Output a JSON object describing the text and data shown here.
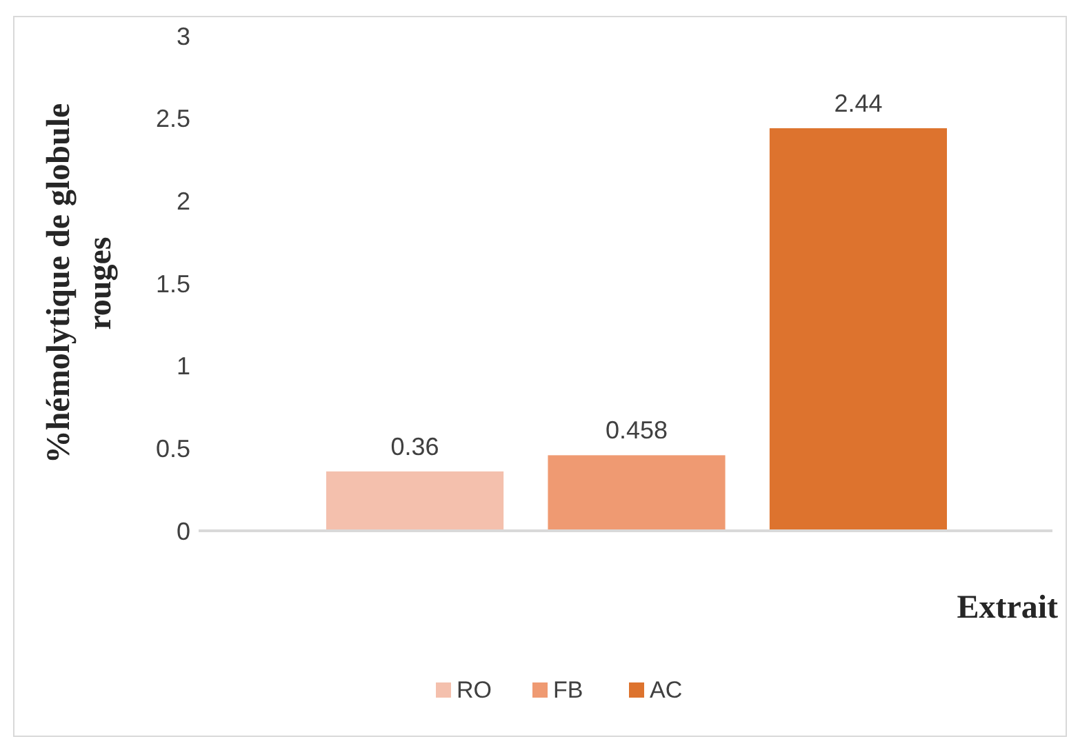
{
  "chart_data": {
    "type": "bar",
    "categories": [
      null
    ],
    "xlabel": "Extrait",
    "ylabel": "%hémolytique de globule rouges",
    "series": [
      {
        "name": "RO",
        "color": "#f4c0ad",
        "values": [
          0.36
        ]
      },
      {
        "name": "FB",
        "color": "#ef9a72",
        "values": [
          0.458
        ]
      },
      {
        "name": "AC",
        "color": "#dd732e",
        "values": [
          2.44
        ]
      }
    ],
    "ylim": [
      0,
      3
    ],
    "yticks": [
      0,
      0.5,
      1,
      1.5,
      2,
      2.5,
      3
    ],
    "data_labels": true,
    "grid": false,
    "legend": "bottom"
  }
}
